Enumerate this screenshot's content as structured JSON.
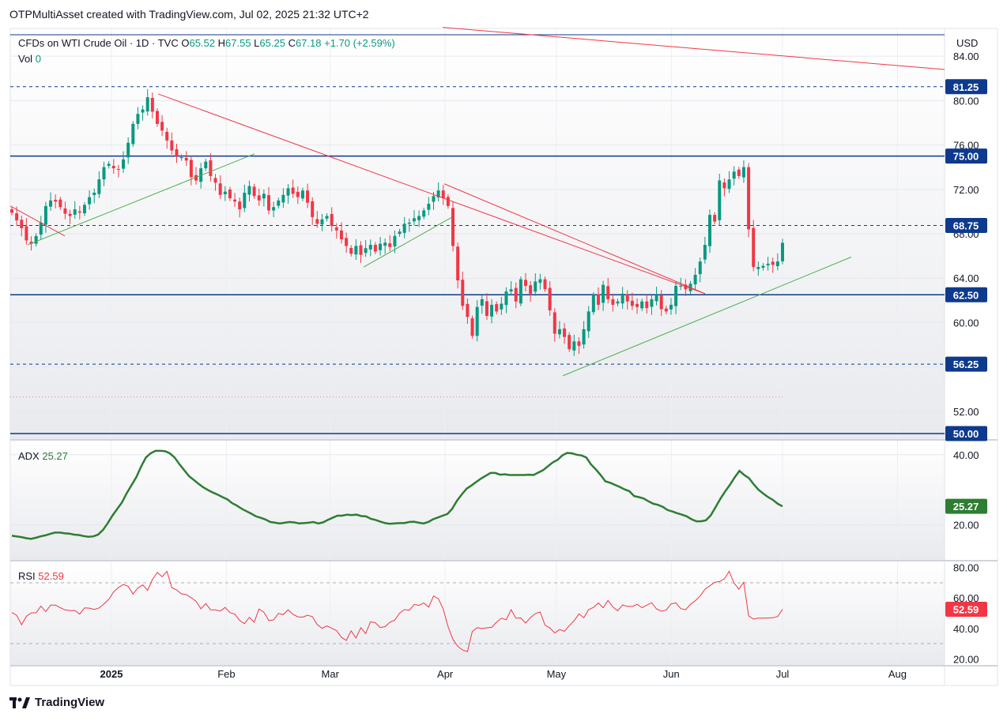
{
  "header": {
    "credit": "OTPMultiAsset created with TradingView.com, Jul 02, 2025 21:32 UTC+2",
    "symbol_line_prefix": "CFDs on WTI Crude Oil · 1D · TVC",
    "open_label": "O",
    "open": "65.52",
    "high_label": "H",
    "high": "67.55",
    "low_label": "L",
    "low": "65.25",
    "close_label": "C",
    "close": "67.18",
    "change": "+1.70 (+2.59%)",
    "vol_label": "Vol",
    "vol_value": "0",
    "currency": "USD"
  },
  "footer": {
    "brand": "TradingView"
  },
  "colors": {
    "up": "#089981",
    "down": "#f23645",
    "trend_red": "#f23645",
    "trend_green": "#4caf50",
    "level_blue": "#0d3a8c",
    "adx": "#2e7d32",
    "rsi": "#f23645",
    "pane_bg": "#f4f5f7"
  },
  "chart_data": [
    {
      "type": "candlestick",
      "title": "CFDs on WTI Crude Oil · 1D · TVC",
      "y_axis_ticks": [
        "84.00",
        "80.00",
        "76.00",
        "72.00",
        "68.00",
        "64.00",
        "60.00",
        "56.00",
        "52.00"
      ],
      "x_axis_ticks": [
        "2025",
        "Feb",
        "Mar",
        "Apr",
        "May",
        "Jun",
        "Jul",
        "Aug"
      ],
      "ylim": [
        49.5,
        86.5
      ],
      "last_price": 67.18,
      "price_levels": [
        {
          "value": 81.25,
          "label": "81.25",
          "style": "dashed"
        },
        {
          "value": 75.0,
          "label": "75.00",
          "style": "solid"
        },
        {
          "value": 68.75,
          "label": "68.75",
          "style": "dashed"
        },
        {
          "value": 62.5,
          "label": "62.50",
          "style": "solid"
        },
        {
          "value": 56.25,
          "label": "56.25",
          "style": "dashed"
        },
        {
          "value": 50.0,
          "label": "50.00",
          "style": "solid"
        }
      ],
      "closes": [
        69.9,
        69.2,
        68.5,
        67.4,
        67.1,
        67.8,
        69.0,
        70.5,
        71.0,
        70.9,
        70.4,
        69.8,
        69.6,
        70.2,
        69.9,
        70.6,
        71.3,
        71.7,
        72.9,
        74.0,
        74.3,
        73.9,
        73.8,
        74.7,
        76.2,
        77.9,
        78.8,
        79.2,
        80.3,
        79.0,
        77.9,
        77.3,
        76.4,
        75.5,
        75.0,
        74.9,
        74.6,
        73.1,
        72.8,
        73.9,
        74.5,
        73.2,
        72.6,
        71.5,
        71.8,
        71.2,
        70.9,
        70.2,
        71.7,
        72.3,
        71.4,
        71.0,
        71.6,
        70.1,
        70.4,
        71.0,
        71.5,
        72.1,
        71.6,
        71.3,
        71.9,
        70.8,
        69.5,
        68.9,
        69.3,
        69.6,
        68.7,
        68.3,
        67.5,
        66.9,
        66.2,
        66.9,
        66.1,
        66.7,
        67.0,
        66.4,
        67.1,
        67.2,
        66.8,
        67.8,
        68.2,
        68.9,
        69.0,
        69.4,
        69.6,
        70.1,
        70.7,
        71.4,
        71.9,
        71.2,
        70.5,
        66.9,
        63.8,
        61.5,
        60.5,
        58.8,
        61.4,
        62.1,
        60.6,
        61.6,
        61.0,
        61.7,
        62.8,
        63.0,
        61.9,
        63.9,
        63.3,
        62.6,
        63.7,
        63.9,
        63.0,
        61.1,
        59.0,
        59.4,
        58.7,
        57.6,
        58.3,
        57.9,
        59.4,
        61.0,
        62.5,
        61.6,
        63.4,
        62.1,
        61.6,
        61.9,
        62.6,
        61.9,
        61.5,
        61.4,
        61.9,
        61.3,
        62.1,
        62.5,
        61.2,
        61.0,
        61.6,
        63.3,
        63.3,
        63.0,
        63.5,
        64.3,
        65.5,
        67.0,
        69.7,
        69.1,
        72.8,
        72.1,
        72.9,
        73.6,
        73.2,
        74.0,
        68.4,
        65.0,
        65.0,
        65.1,
        65.3,
        65.2,
        65.5,
        67.18
      ],
      "note": "daily closes, 2025-01-01 .. 2025-07-02 (trading days, approx.)"
    },
    {
      "type": "line",
      "title": "ADX",
      "value_label": "25.27",
      "y_axis_ticks": [
        "40.00",
        "20.00"
      ],
      "ylim": [
        10,
        44
      ],
      "values": [
        16.9,
        16.7,
        16.5,
        16.2,
        16.0,
        16.3,
        16.7,
        17.0,
        17.4,
        17.8,
        17.8,
        17.6,
        17.5,
        17.2,
        17.1,
        16.8,
        16.6,
        16.7,
        17.2,
        18.5,
        20.4,
        22.6,
        24.5,
        26.4,
        29.0,
        31.3,
        33.6,
        36.6,
        39.2,
        40.4,
        41.1,
        41.1,
        41.0,
        40.4,
        39.2,
        37.3,
        35.6,
        33.9,
        32.8,
        31.7,
        30.7,
        29.9,
        29.2,
        28.6,
        27.9,
        27.3,
        26.2,
        25.5,
        24.6,
        23.9,
        23.2,
        22.4,
        22.0,
        21.5,
        20.8,
        20.6,
        20.4,
        20.6,
        20.8,
        20.7,
        20.4,
        20.5,
        20.6,
        20.8,
        20.4,
        20.7,
        21.4,
        22.0,
        22.6,
        22.6,
        22.9,
        22.8,
        22.9,
        22.5,
        22.4,
        21.7,
        21.4,
        20.9,
        20.5,
        20.3,
        20.4,
        20.5,
        20.5,
        20.8,
        20.9,
        20.6,
        20.4,
        20.8,
        21.6,
        22.1,
        22.6,
        23.1,
        24.6,
        26.9,
        28.7,
        30.3,
        31.2,
        32.2,
        33.2,
        34.0,
        34.8,
        34.8,
        34.3,
        34.4,
        34.2,
        34.2,
        34.2,
        34.2,
        34.3,
        34.2,
        34.9,
        35.6,
        36.7,
        37.8,
        38.5,
        39.8,
        40.5,
        40.4,
        40.0,
        39.8,
        39.2,
        37.2,
        35.8,
        34.2,
        32.4,
        32.0,
        31.4,
        30.8,
        30.1,
        29.6,
        28.2,
        27.9,
        27.5,
        26.7,
        26.0,
        25.7,
        25.1,
        24.2,
        23.8,
        23.3,
        22.9,
        22.4,
        21.6,
        21.0,
        21.0,
        21.3,
        22.7,
        25.0,
        27.4,
        29.5,
        31.4,
        33.5,
        35.4,
        34.2,
        33.3,
        31.5,
        30.0,
        28.9,
        27.9,
        27.1,
        26.0,
        25.27
      ]
    },
    {
      "type": "line",
      "title": "RSI",
      "value_label": "52.59",
      "y_axis_ticks": [
        "80.00",
        "60.00",
        "40.00",
        "20.00"
      ],
      "ylim": [
        16,
        84
      ],
      "bands": [
        70,
        30
      ],
      "values": [
        50.4,
        48.6,
        42.4,
        48.0,
        50.2,
        50.3,
        54.6,
        51.1,
        55.3,
        55.3,
        53.6,
        52.2,
        51.7,
        51.8,
        49.4,
        53.5,
        53.3,
        52.5,
        53.5,
        56.0,
        59.1,
        64.0,
        66.9,
        68.9,
        67.7,
        62.6,
        66.6,
        68.6,
        65.0,
        72.1,
        76.8,
        74.0,
        77.5,
        66.8,
        65.2,
        62.7,
        62.2,
        60.2,
        57.9,
        52.9,
        56.3,
        52.3,
        52.2,
        51.4,
        53.8,
        50.4,
        49.4,
        45.3,
        43.1,
        47.3,
        44.1,
        52.8,
        50.6,
        45.2,
        45.6,
        49.9,
        49.0,
        52.3,
        49.2,
        47.6,
        47.4,
        48.7,
        47.7,
        42.5,
        40.1,
        41.7,
        40.1,
        38.6,
        34.1,
        32.1,
        38.4,
        33.7,
        40.5,
        36.6,
        44.4,
        43.7,
        40.6,
        41.2,
        44.1,
        45.5,
        50.1,
        52.4,
        51.9,
        55.7,
        55.2,
        56.7,
        54.0,
        61.3,
        59.5,
        52.6,
        41.1,
        32.8,
        28.2,
        25.8,
        24.7,
        38.0,
        40.5,
        39.9,
        40.4,
        40.7,
        44.1,
        46.7,
        45.7,
        52.3,
        46.8,
        46.9,
        43.5,
        47.1,
        49.8,
        50.8,
        42.2,
        40.3,
        37.0,
        39.2,
        38.1,
        41.8,
        45.0,
        49.6,
        47.0,
        52.4,
        53.8,
        56.7,
        53.6,
        58.4,
        54.0,
        51.6,
        55.4,
        54.5,
        54.4,
        55.8,
        53.6,
        55.3,
        56.9,
        52.8,
        51.3,
        52.0,
        56.1,
        56.8,
        53.0,
        52.3,
        55.8,
        58.2,
        61.3,
        65.8,
        68.0,
        70.3,
        70.8,
        72.6,
        77.5,
        69.8,
        65.8,
        70.4,
        48.3,
        46.1,
        46.8,
        46.8,
        46.9,
        47.0,
        47.8,
        52.59
      ]
    }
  ],
  "drawings_note": "Trend lines are approximate overlays drawn on the price pane."
}
